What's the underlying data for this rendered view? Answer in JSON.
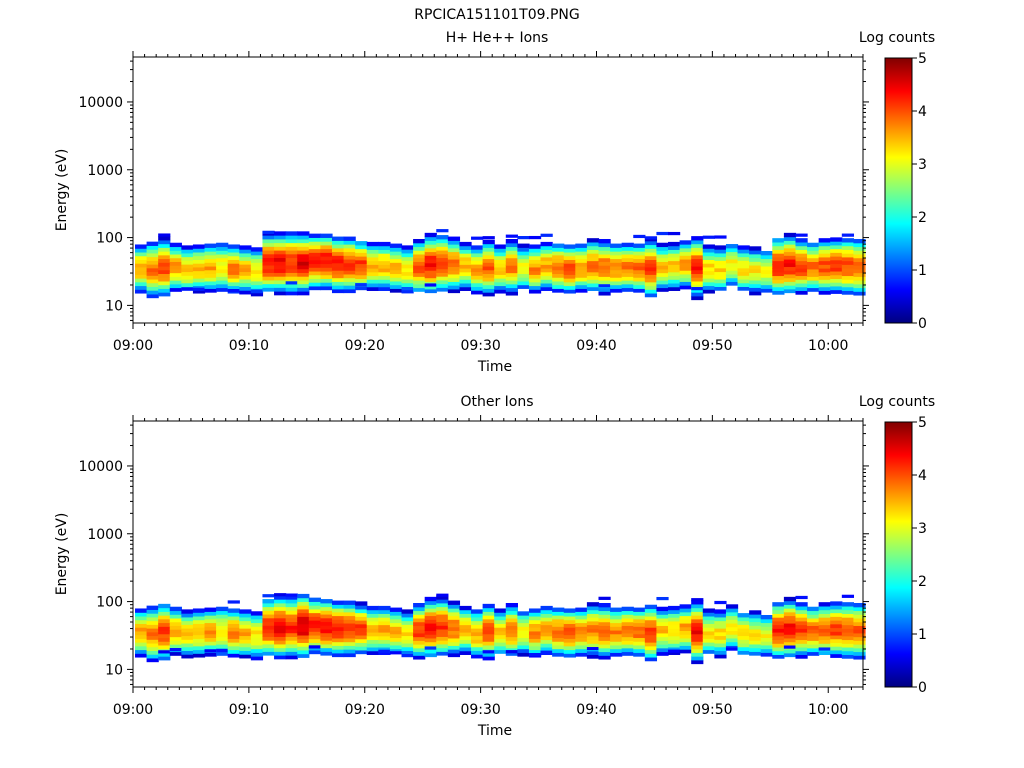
{
  "figure_title": "RPCICA151101T09.PNG",
  "chart_data": [
    {
      "type": "heatmap",
      "title": "H+ He++ Ions",
      "xlabel": "Time",
      "ylabel": "Energy (eV)",
      "x_ticks": [
        "09:00",
        "09:10",
        "09:20",
        "09:30",
        "09:40",
        "09:50",
        "10:00"
      ],
      "x_range_minutes": [
        0,
        63
      ],
      "y_scale": "log",
      "y_ticks": [
        "10",
        "100",
        "1000",
        "10000"
      ],
      "y_range_ev": [
        5.5,
        46000
      ],
      "colorbar": {
        "label": "Log counts",
        "ticks": [
          "0",
          "1",
          "2",
          "3",
          "4",
          "5"
        ],
        "range": [
          0,
          5
        ]
      },
      "peak_energy_ev": [
        33,
        32,
        34,
        35,
        32,
        33,
        34,
        35,
        33,
        32,
        30,
        40,
        40,
        40,
        40,
        42,
        42,
        38,
        38,
        37,
        36,
        36,
        34,
        32,
        35,
        38,
        40,
        38,
        36,
        32,
        34,
        33,
        35,
        34,
        33,
        36,
        34,
        33,
        34,
        36,
        35,
        34,
        35,
        34,
        33,
        35,
        36,
        38,
        34,
        33,
        32,
        38,
        32,
        31,
        30,
        36,
        38,
        36,
        35,
        36,
        37,
        36,
        35
      ],
      "peak_log_counts": [
        3.6,
        3.8,
        4.1,
        3.6,
        3.4,
        3.5,
        3.6,
        3.2,
        3.8,
        3.5,
        3.2,
        4.3,
        4.4,
        4.2,
        4.5,
        4.3,
        4.4,
        4.3,
        4.2,
        4.1,
        3.5,
        3.6,
        3.5,
        3.3,
        4.0,
        4.3,
        4.2,
        3.9,
        3.5,
        3.6,
        4.0,
        3.4,
        3.8,
        3.2,
        3.7,
        3.6,
        3.9,
        4.0,
        3.7,
        3.8,
        3.9,
        3.8,
        3.8,
        3.9,
        4.1,
        3.4,
        3.4,
        3.6,
        4.3,
        3.3,
        3.3,
        3.2,
        3.3,
        3.2,
        3.1,
        4.2,
        4.3,
        4.1,
        3.9,
        4.0,
        4.1,
        4.0,
        3.9
      ],
      "spread": [
        0.7,
        0.8,
        0.8,
        0.7,
        0.7,
        0.7,
        0.7,
        0.8,
        0.7,
        0.7,
        0.75,
        0.8,
        0.8,
        0.85,
        0.8,
        0.75,
        0.75,
        0.75,
        0.75,
        0.7,
        0.7,
        0.7,
        0.7,
        0.7,
        0.75,
        0.8,
        0.8,
        0.75,
        0.7,
        0.7,
        0.75,
        0.7,
        0.75,
        0.7,
        0.7,
        0.7,
        0.7,
        0.7,
        0.7,
        0.75,
        0.75,
        0.7,
        0.7,
        0.7,
        0.8,
        0.7,
        0.7,
        0.7,
        0.8,
        0.7,
        0.7,
        0.7,
        0.7,
        0.7,
        0.7,
        0.8,
        0.8,
        0.75,
        0.7,
        0.75,
        0.75,
        0.8,
        0.8
      ]
    },
    {
      "type": "heatmap",
      "title": "Other Ions",
      "xlabel": "Time",
      "ylabel": "Energy (eV)",
      "x_ticks": [
        "09:00",
        "09:10",
        "09:20",
        "09:30",
        "09:40",
        "09:50",
        "10:00"
      ],
      "x_range_minutes": [
        0,
        63
      ],
      "y_scale": "log",
      "y_ticks": [
        "10",
        "100",
        "1000",
        "10000"
      ],
      "y_range_ev": [
        5.5,
        46000
      ],
      "colorbar": {
        "label": "Log counts",
        "ticks": [
          "0",
          "1",
          "2",
          "3",
          "4",
          "5"
        ],
        "range": [
          0,
          5
        ]
      },
      "peak_energy_ev": [
        33,
        32,
        34,
        35,
        32,
        33,
        34,
        35,
        33,
        32,
        30,
        40,
        40,
        40,
        42,
        42,
        40,
        38,
        38,
        37,
        36,
        36,
        34,
        32,
        35,
        38,
        40,
        38,
        36,
        32,
        34,
        33,
        35,
        34,
        33,
        36,
        34,
        33,
        34,
        36,
        35,
        34,
        35,
        34,
        33,
        35,
        36,
        38,
        34,
        33,
        32,
        38,
        32,
        31,
        30,
        36,
        38,
        36,
        35,
        36,
        37,
        36,
        35
      ],
      "peak_log_counts": [
        3.6,
        3.8,
        4.1,
        3.6,
        3.4,
        3.5,
        3.6,
        3.2,
        3.8,
        3.5,
        3.2,
        4.3,
        4.4,
        4.2,
        4.6,
        4.3,
        4.4,
        4.3,
        4.2,
        4.1,
        3.5,
        3.6,
        3.5,
        3.3,
        4.1,
        4.3,
        4.2,
        3.9,
        3.5,
        3.6,
        4.0,
        3.4,
        3.8,
        3.2,
        3.7,
        3.6,
        3.9,
        4.0,
        3.7,
        3.8,
        3.9,
        3.8,
        3.8,
        3.9,
        4.1,
        3.4,
        3.4,
        3.6,
        4.4,
        3.3,
        3.3,
        3.2,
        3.3,
        3.2,
        3.1,
        4.2,
        4.3,
        4.1,
        3.9,
        4.0,
        4.1,
        4.0,
        3.9
      ],
      "spread": [
        0.7,
        0.8,
        0.8,
        0.7,
        0.7,
        0.7,
        0.7,
        0.8,
        0.7,
        0.7,
        0.75,
        0.8,
        0.85,
        0.85,
        0.85,
        0.75,
        0.75,
        0.75,
        0.75,
        0.7,
        0.7,
        0.7,
        0.7,
        0.7,
        0.75,
        0.8,
        0.8,
        0.75,
        0.7,
        0.7,
        0.75,
        0.7,
        0.75,
        0.7,
        0.7,
        0.7,
        0.7,
        0.7,
        0.7,
        0.75,
        0.75,
        0.7,
        0.7,
        0.7,
        0.8,
        0.7,
        0.7,
        0.7,
        0.8,
        0.7,
        0.7,
        0.7,
        0.7,
        0.7,
        0.7,
        0.8,
        0.8,
        0.75,
        0.7,
        0.75,
        0.75,
        0.8,
        0.8
      ]
    }
  ]
}
